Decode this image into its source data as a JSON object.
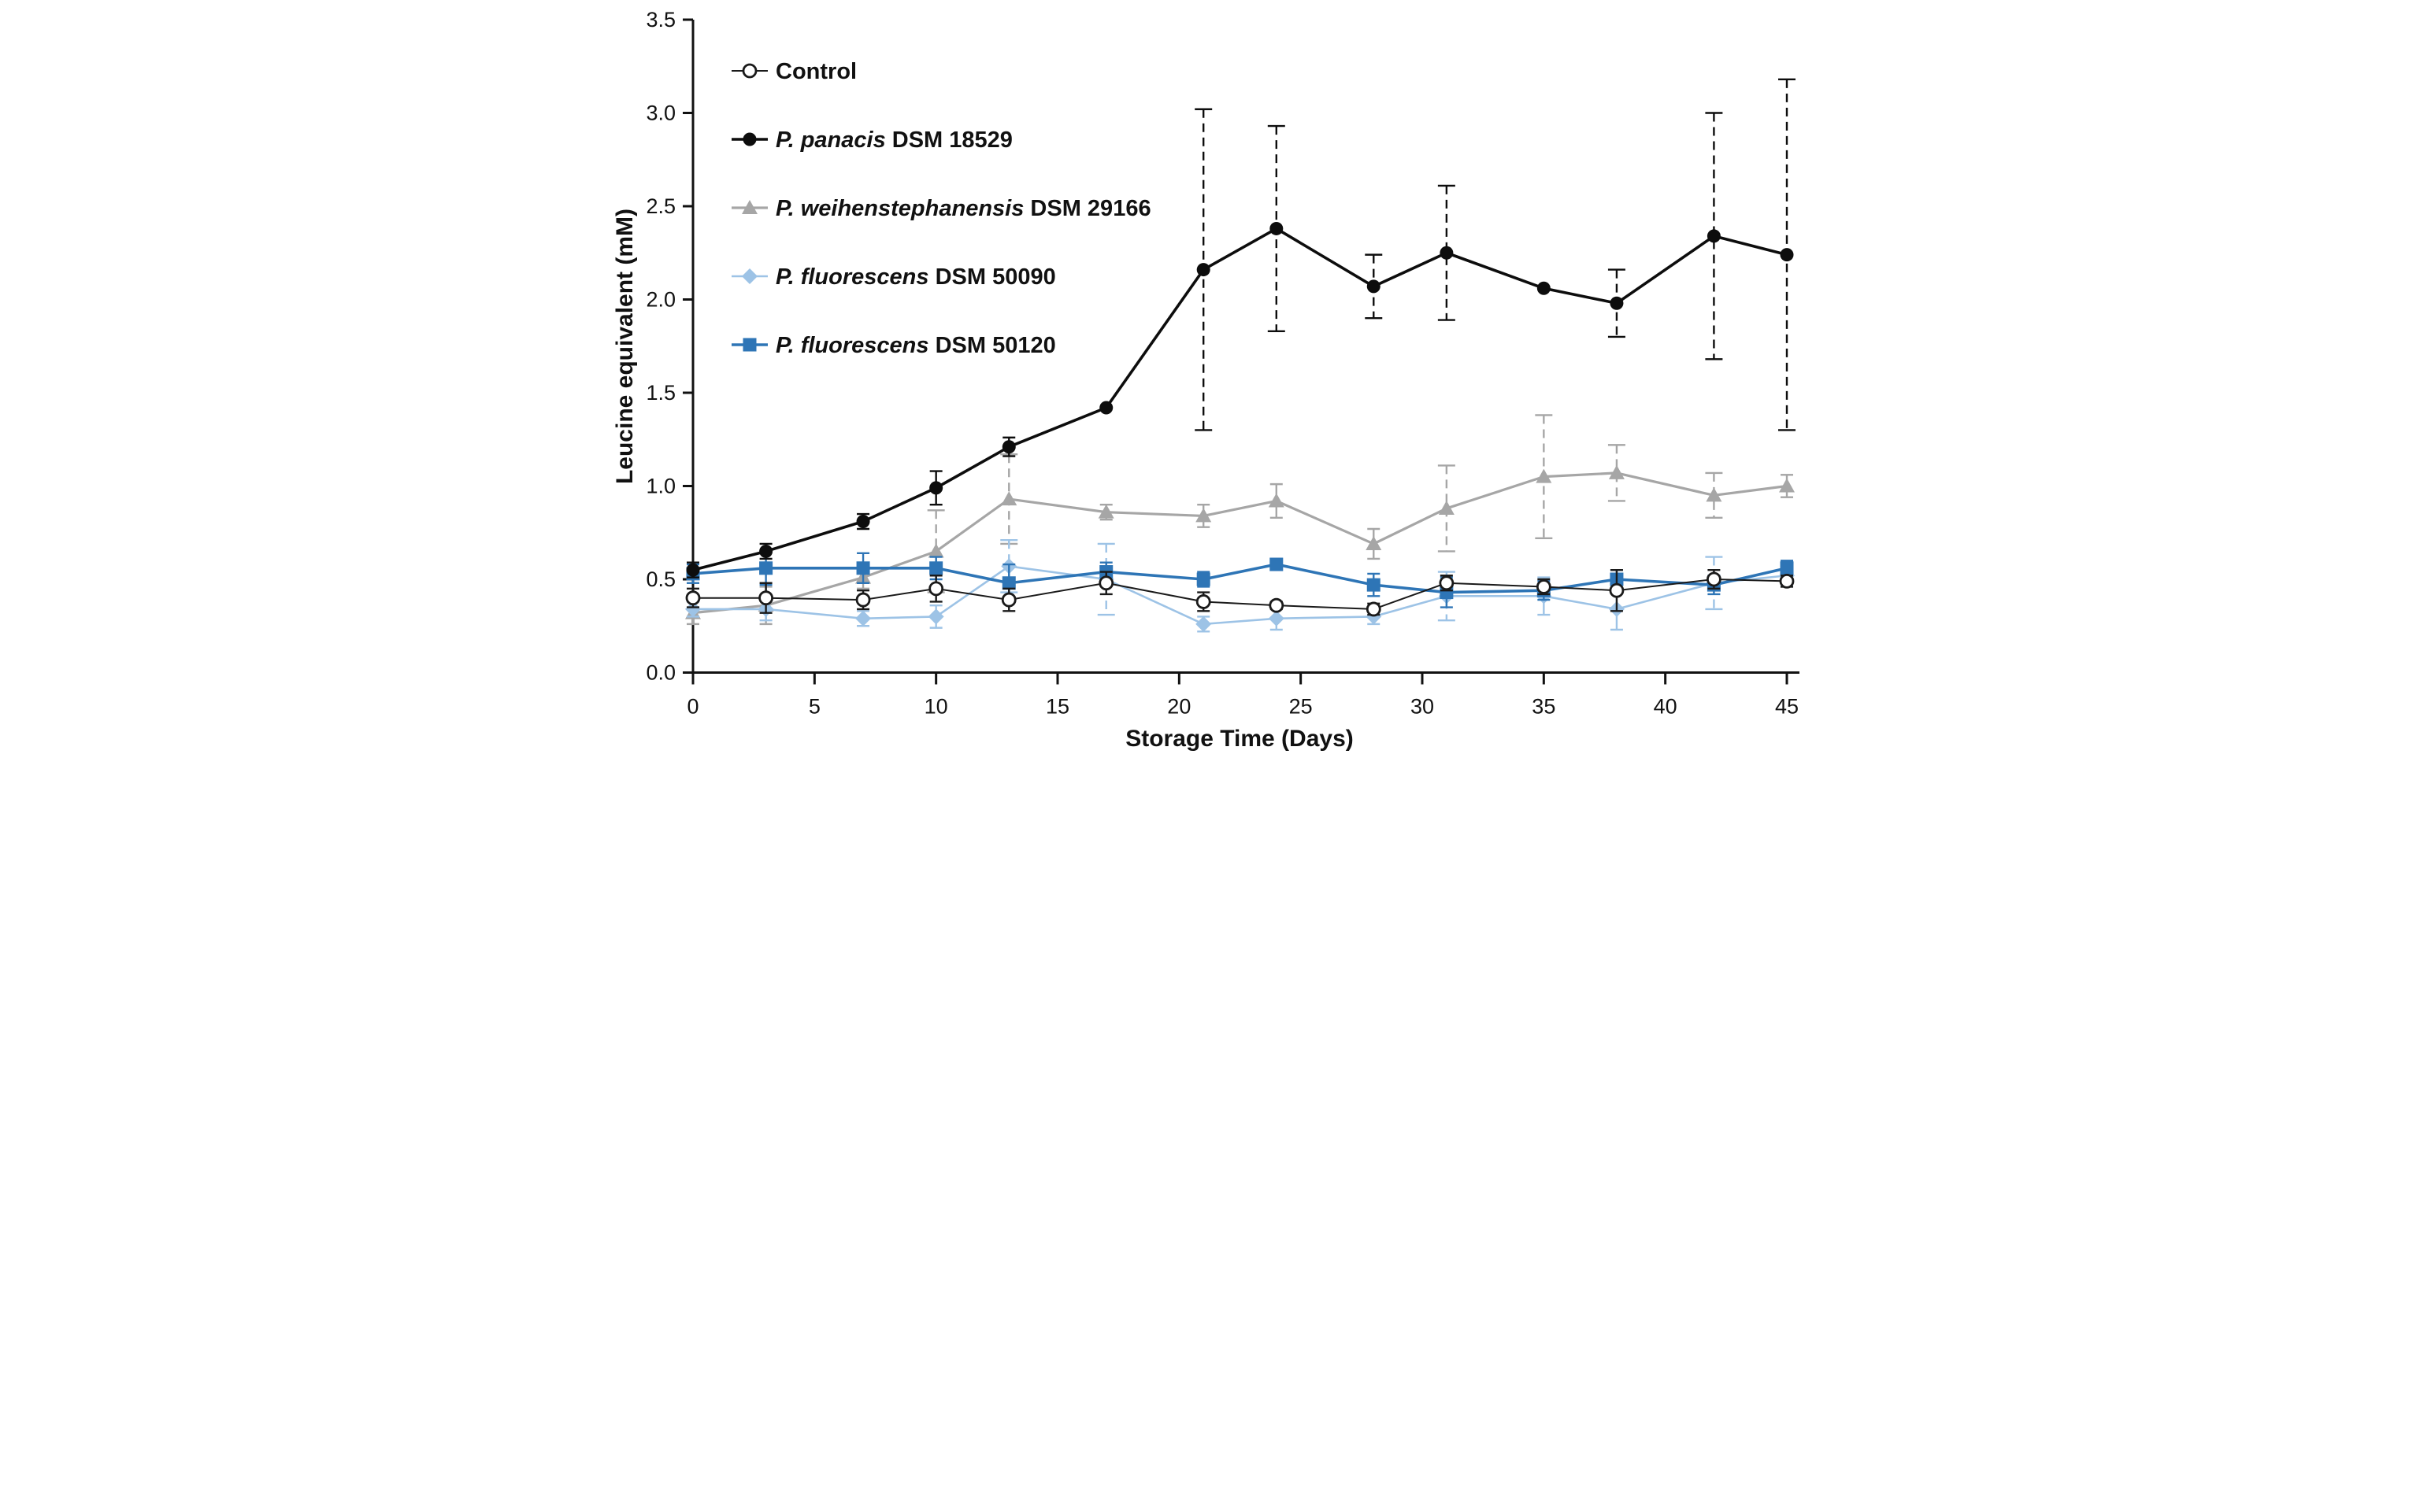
{
  "figure": {
    "background": "#ffffff"
  },
  "axes": {
    "x": {
      "label": "Storage Time (Days)",
      "min": 0,
      "max": 45,
      "ticks": [
        0,
        5,
        10,
        15,
        20,
        25,
        30,
        35,
        40,
        45
      ]
    },
    "y": {
      "label": "Leucine equivalent (mM)",
      "min": 0,
      "max": 3.5,
      "ticks": [
        "0.0",
        "0.5",
        "1.0",
        "1.5",
        "2.0",
        "2.5",
        "3.0",
        "3.5"
      ]
    }
  },
  "legend": {
    "position": "top-left-inside"
  },
  "chart_data": {
    "type": "line",
    "title": "",
    "xlabel": "Storage Time (Days)",
    "ylabel": "Leucine equivalent (mM)",
    "xlim": [
      0,
      45
    ],
    "ylim": [
      0,
      3.5
    ],
    "grid": false,
    "x": [
      0,
      3,
      7,
      10,
      13,
      17,
      21,
      24,
      28,
      31,
      35,
      38,
      42,
      45
    ],
    "series": [
      {
        "name": "Control",
        "label_italic": "",
        "label_rest": "Control",
        "marker": "circle-open",
        "color": "#1a1a1a",
        "line_width": 2.0,
        "values": [
          0.4,
          0.4,
          0.39,
          0.45,
          0.39,
          0.48,
          0.38,
          0.36,
          0.34,
          0.48,
          0.46,
          0.44,
          0.5,
          0.49
        ],
        "errors": [
          0.05,
          0.08,
          0.05,
          0.07,
          0.06,
          0.06,
          0.05,
          0.02,
          0.03,
          0.04,
          0.04,
          0.11,
          0.05,
          0.03
        ]
      },
      {
        "name": "P. panacis DSM 18529",
        "label_italic": "P. panacis",
        "label_rest": " DSM 18529",
        "marker": "circle",
        "color": "#0d0d0d",
        "line_width": 3.6,
        "values": [
          0.55,
          0.65,
          0.81,
          0.99,
          1.21,
          1.42,
          2.16,
          2.38,
          2.07,
          2.25,
          2.06,
          1.98,
          2.34,
          2.24
        ],
        "errors": [
          0.04,
          0.04,
          0.04,
          0.09,
          0.05,
          0.0,
          0.86,
          0.55,
          0.17,
          0.36,
          0.0,
          0.18,
          0.66,
          0.94
        ]
      },
      {
        "name": "P. weihenstephanensis DSM 29166",
        "label_italic": "P. weihenstephanensis",
        "label_rest": " DSM 29166",
        "marker": "triangle",
        "color": "#a6a6a6",
        "line_width": 3.2,
        "values": [
          0.32,
          0.36,
          0.51,
          0.65,
          0.93,
          0.86,
          0.84,
          0.92,
          0.69,
          0.88,
          1.05,
          1.07,
          0.95,
          1.0
        ],
        "errors": [
          0.06,
          0.1,
          0.06,
          0.22,
          0.24,
          0.04,
          0.06,
          0.09,
          0.08,
          0.23,
          0.33,
          0.15,
          0.12,
          0.06
        ]
      },
      {
        "name": "P. fluorescens DSM 50090",
        "label_italic": "P. fluorescens",
        "label_rest": " DSM 50090",
        "marker": "diamond",
        "color": "#9dc3e6",
        "line_width": 2.6,
        "values": [
          0.34,
          0.34,
          0.29,
          0.3,
          0.57,
          0.5,
          0.26,
          0.29,
          0.3,
          0.41,
          0.41,
          0.34,
          0.48,
          0.52
        ],
        "errors": [
          0.04,
          0.06,
          0.04,
          0.06,
          0.14,
          0.19,
          0.04,
          0.06,
          0.04,
          0.13,
          0.1,
          0.11,
          0.14,
          0.05
        ]
      },
      {
        "name": "P. fluorescens DSM 50120",
        "label_italic": "P. fluorescens",
        "label_rest": " DSM 50120",
        "marker": "square",
        "color": "#2e75b6",
        "line_width": 3.6,
        "values": [
          0.53,
          0.56,
          0.56,
          0.56,
          0.48,
          0.54,
          0.5,
          0.58,
          0.47,
          0.43,
          0.44,
          0.5,
          0.47,
          0.56
        ],
        "errors": [
          0.05,
          0.09,
          0.08,
          0.06,
          0.1,
          0.05,
          0.04,
          0.03,
          0.06,
          0.08,
          0.05,
          0.05,
          0.05,
          0.04
        ]
      }
    ]
  }
}
